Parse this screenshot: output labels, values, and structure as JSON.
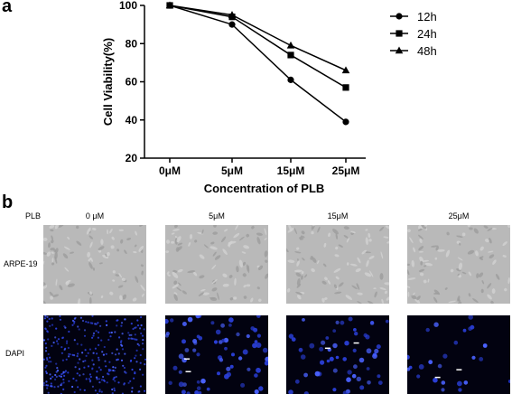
{
  "panel_a": {
    "label": "a"
  },
  "panel_b": {
    "label": "b",
    "header_label": "PLB",
    "column_labels": [
      "0 μM",
      "5μM",
      "15μM",
      "25μM"
    ],
    "row_labels": [
      "ARPE-19",
      "DAPI"
    ]
  },
  "chart_data": {
    "type": "line",
    "title": "",
    "xlabel": "Concentration of PLB",
    "ylabel": "Cell Viability(%)",
    "categories": [
      "0μM",
      "5μM",
      "15μM",
      "25μM"
    ],
    "ylim": [
      20,
      100
    ],
    "yticks": [
      20,
      40,
      60,
      80,
      100
    ],
    "grid": false,
    "legend_position": "top-right",
    "series": [
      {
        "name": "12h",
        "marker": "circle",
        "values": [
          100,
          90,
          61,
          39
        ]
      },
      {
        "name": "24h",
        "marker": "square",
        "values": [
          100,
          94,
          74,
          57
        ]
      },
      {
        "name": "48h",
        "marker": "triangle",
        "values": [
          100,
          95,
          79,
          66
        ]
      }
    ]
  }
}
